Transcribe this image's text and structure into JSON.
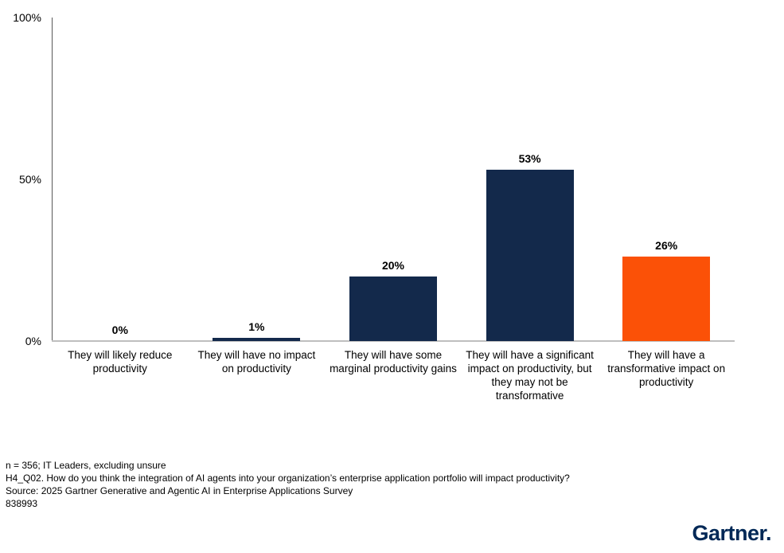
{
  "chart_data": {
    "type": "bar",
    "title": "",
    "xlabel": "",
    "ylabel": "",
    "ylim": [
      0,
      100
    ],
    "grid": false,
    "legend": "none",
    "categories": [
      "They will likely reduce productivity",
      "They will have no impact on productivity",
      "They will have some marginal productivity gains",
      "They will have a significant impact on productivity, but they may not be transformative",
      "They will have a transformative impact on productivity"
    ],
    "values": [
      0,
      1,
      20,
      53,
      26
    ],
    "value_labels": [
      "0%",
      "1%",
      "20%",
      "53%",
      "26%"
    ],
    "bar_colors": [
      "#13294B",
      "#13294B",
      "#13294B",
      "#13294B",
      "#FB5107"
    ],
    "yticks": [
      {
        "value": 100,
        "label": "100%"
      },
      {
        "value": 50,
        "label": "50%"
      },
      {
        "value": 0,
        "label": "0%"
      }
    ],
    "colors": {
      "navy": "#13294B",
      "orange": "#FB5107",
      "axis_gray": "#BFBFBF"
    }
  },
  "footer": {
    "line1": "n = 356; IT Leaders, excluding unsure",
    "line2": "H4_Q02. How do you think the integration of AI agents into your organization’s enterprise application portfolio will impact productivity?",
    "line3": "Source: 2025 Gartner Generative and Agentic AI in Enterprise Applications Survey",
    "line4": "838993"
  },
  "branding": {
    "logo_text": "Gartner.",
    "logo_color": "#002856"
  }
}
